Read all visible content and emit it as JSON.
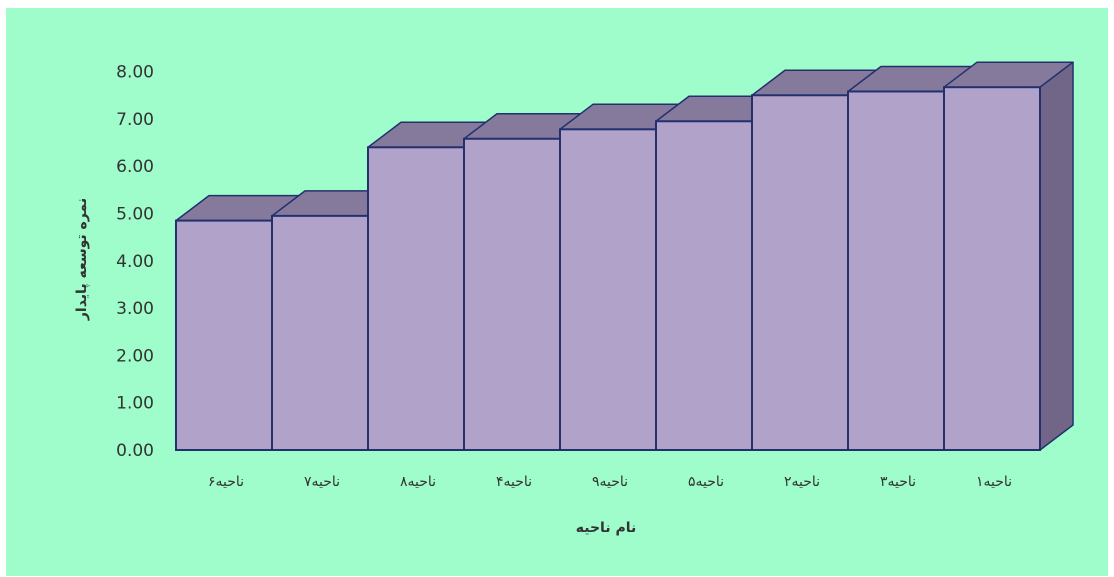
{
  "chart_data": {
    "type": "bar",
    "style": "3d-column",
    "categories": [
      "ناحیه۶",
      "ناحیه۷",
      "ناحیه۸",
      "ناحیه۴",
      "ناحیه۹",
      "ناحیه۵",
      "ناحیه۲",
      "ناحیه۳",
      "ناحیه۱"
    ],
    "values": [
      4.85,
      4.95,
      6.4,
      6.58,
      6.78,
      6.95,
      7.5,
      7.58,
      7.67
    ],
    "xlabel": "نام ناحیه",
    "ylabel": "نمره توسعه پایدار",
    "ylim": [
      0,
      8
    ],
    "y_ticks": [
      "0.00",
      "1.00",
      "2.00",
      "3.00",
      "4.00",
      "5.00",
      "6.00",
      "7.00",
      "8.00"
    ],
    "grid": false,
    "legend": "none"
  },
  "colors": {
    "background": "#9ffccb",
    "bar_front": "#b1a2c9",
    "bar_top": "#867a9c",
    "bar_side": "#716687",
    "bar_outline": "#23306e",
    "text": "#333333"
  }
}
